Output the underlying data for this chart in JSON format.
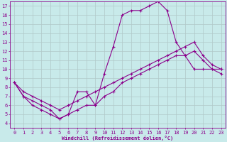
{
  "xlabel": "Windchill (Refroidissement éolien,°C)",
  "background_color": "#c8eaea",
  "line_color": "#8b008b",
  "grid_color": "#b0c8c8",
  "xlim": [
    -0.5,
    23.5
  ],
  "ylim": [
    3.5,
    17.5
  ],
  "xticks": [
    0,
    1,
    2,
    3,
    4,
    5,
    6,
    7,
    8,
    9,
    10,
    11,
    12,
    13,
    14,
    15,
    16,
    17,
    18,
    19,
    20,
    21,
    22,
    23
  ],
  "yticks": [
    4,
    5,
    6,
    7,
    8,
    9,
    10,
    11,
    12,
    13,
    14,
    15,
    16,
    17
  ],
  "line_peaked_x": [
    0,
    1,
    2,
    3,
    4,
    5,
    6,
    7,
    8,
    9,
    10,
    11,
    12,
    13,
    14,
    15,
    16,
    17,
    18,
    19,
    20,
    21,
    22,
    23
  ],
  "line_peaked_y": [
    8.5,
    7.0,
    6.5,
    6.0,
    5.5,
    4.5,
    5.0,
    7.5,
    7.5,
    6.0,
    9.5,
    12.5,
    16.0,
    16.5,
    16.5,
    17.0,
    17.5,
    16.5,
    13.0,
    11.5,
    10.0,
    10.0,
    10.0,
    10.0
  ],
  "line_upper_x": [
    0,
    1,
    2,
    3,
    4,
    5,
    6,
    7,
    8,
    9,
    10,
    11,
    12,
    13,
    14,
    15,
    16,
    17,
    18,
    19,
    20,
    21,
    22,
    23
  ],
  "line_upper_y": [
    8.5,
    7.5,
    7.0,
    6.5,
    6.0,
    5.5,
    6.0,
    6.5,
    7.0,
    7.5,
    8.0,
    8.5,
    9.0,
    9.5,
    10.0,
    10.5,
    11.0,
    11.5,
    12.0,
    12.5,
    13.0,
    11.5,
    10.5,
    10.0
  ],
  "line_lower_x": [
    0,
    1,
    2,
    3,
    4,
    5,
    6,
    7,
    8,
    9,
    10,
    11,
    12,
    13,
    14,
    15,
    16,
    17,
    18,
    19,
    20,
    21,
    22,
    23
  ],
  "line_lower_y": [
    8.5,
    7.0,
    6.0,
    5.5,
    5.0,
    4.5,
    5.0,
    5.5,
    6.0,
    6.0,
    7.0,
    7.5,
    8.5,
    9.0,
    9.5,
    10.0,
    10.5,
    11.0,
    11.5,
    11.5,
    12.0,
    11.0,
    10.0,
    9.5
  ],
  "tick_fontsize": 5,
  "xlabel_fontsize": 5,
  "marker": "+",
  "markersize": 3,
  "linewidth": 0.8,
  "font_family": "monospace"
}
